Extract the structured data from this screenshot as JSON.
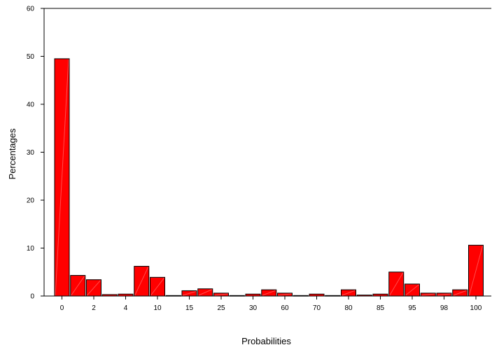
{
  "chart_data": {
    "type": "bar",
    "title": "",
    "xlabel": "Probabilities",
    "ylabel": "Percentages",
    "ylim": [
      0,
      60
    ],
    "yticks": [
      0,
      10,
      20,
      30,
      40,
      50,
      60
    ],
    "values": [
      49.5,
      4.3,
      3.4,
      0.3,
      0.4,
      6.2,
      3.9,
      0.1,
      1.1,
      1.5,
      0.6,
      0.1,
      0.4,
      1.3,
      0.6,
      0.1,
      0.4,
      0.1,
      1.3,
      0.2,
      0.4,
      5.0,
      2.5,
      0.6,
      0.6,
      1.3,
      10.6
    ],
    "xtick_labels": [
      {
        "bar": 0,
        "label": "0"
      },
      {
        "bar": 2,
        "label": "2"
      },
      {
        "bar": 4,
        "label": "4"
      },
      {
        "bar": 6,
        "label": "10"
      },
      {
        "bar": 8,
        "label": "15"
      },
      {
        "bar": 10,
        "label": "25"
      },
      {
        "bar": 12,
        "label": "30"
      },
      {
        "bar": 14,
        "label": "60"
      },
      {
        "bar": 16,
        "label": "70"
      },
      {
        "bar": 18,
        "label": "80"
      },
      {
        "bar": 20,
        "label": "85"
      },
      {
        "bar": 22,
        "label": "95"
      },
      {
        "bar": 24,
        "label": "98"
      },
      {
        "bar": 26,
        "label": "100"
      }
    ],
    "bar_color": "#ff0000",
    "grid": false,
    "legend": "none"
  }
}
